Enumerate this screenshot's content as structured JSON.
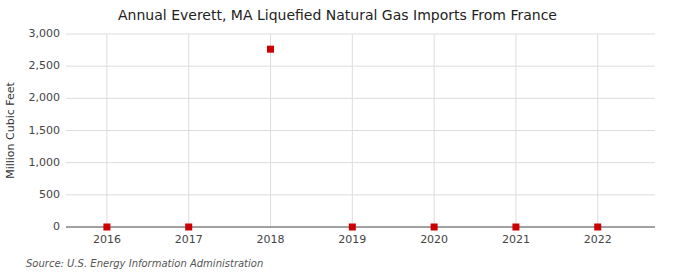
{
  "chart_data": {
    "type": "scatter",
    "title": "Annual Everett, MA Liquefied Natural Gas Imports From France",
    "y_label": "Million Cubic Feet",
    "source": "Source: U.S. Energy Information Administration",
    "x": [
      2016,
      2017,
      2018,
      2019,
      2020,
      2021,
      2022
    ],
    "values": [
      0,
      0,
      2764,
      0,
      0,
      0,
      0
    ],
    "color": "#cc0000",
    "marker": "square",
    "xlim": [
      2015.5,
      2022.7
    ],
    "ylim": [
      0,
      3000
    ],
    "xticks": [
      2016,
      2017,
      2018,
      2019,
      2020,
      2021,
      2022
    ],
    "yticks": [
      0,
      500,
      {
        "value": 1000,
        "label": "1,000"
      },
      {
        "value": 1500,
        "label": "1,500"
      },
      {
        "value": 2000,
        "label": "2,000"
      },
      {
        "value": 2500,
        "label": "2,500"
      },
      {
        "value": 3000,
        "label": "3,000"
      }
    ],
    "grid": true
  }
}
